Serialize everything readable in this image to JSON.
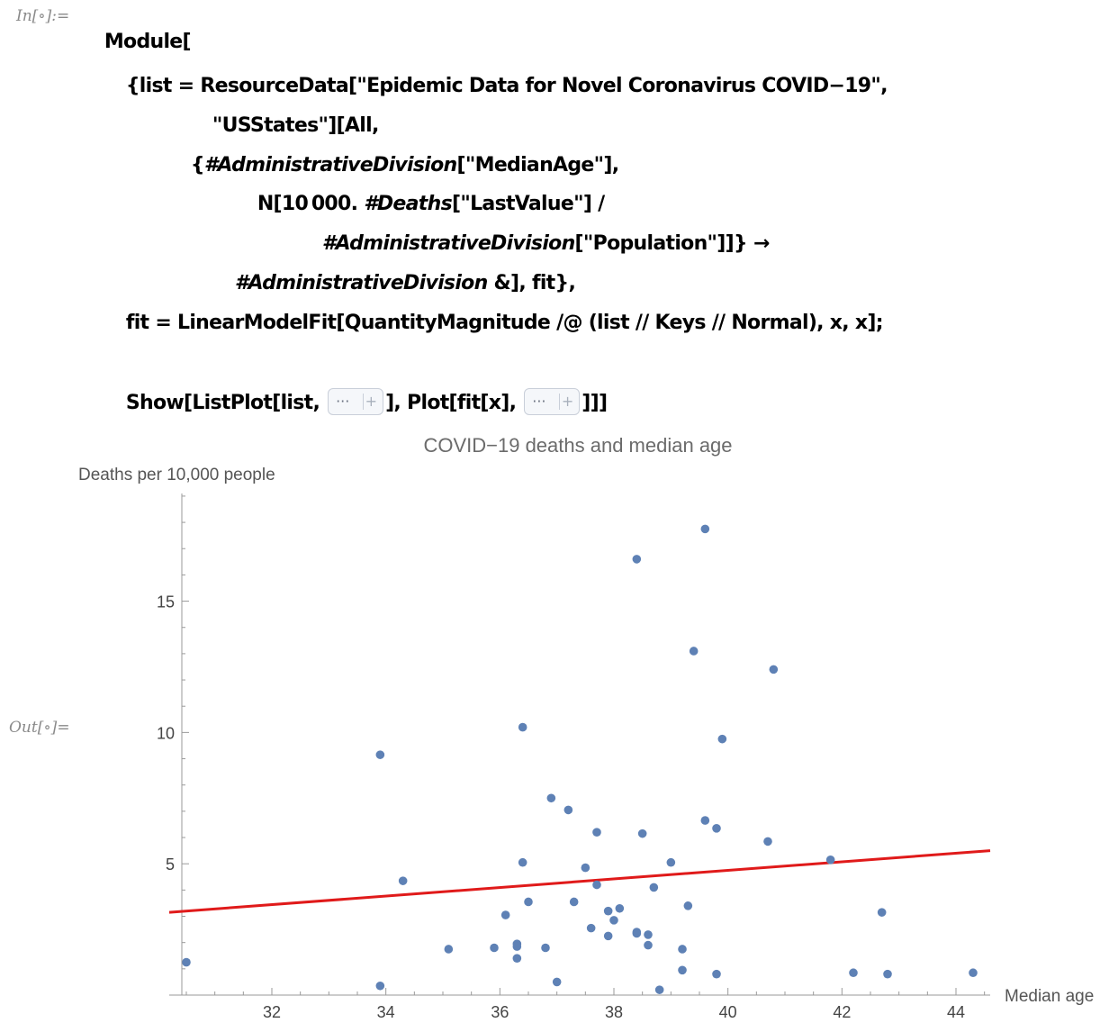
{
  "notebook": {
    "input_label": "In[∘]:=",
    "output_label": "Out[∘]=",
    "code": {
      "line1": "Module[",
      "line2": "{list = ResourceData[\"Epidemic Data for Novel Coronavirus COVID−19\",",
      "line3": "\"USStates\"][All,",
      "line4a": "{",
      "line4b": "#AdministrativeDivision",
      "line4c": "[\"MedianAge\"],",
      "line5a": "N[10 000. ",
      "line5b": "#Deaths",
      "line5c": "[\"LastValue\"] /",
      "line6a": "#AdministrativeDivision",
      "line6b": "[\"Population\"]]} →",
      "line7a": "#AdministrativeDivision",
      "line7b": " &], fit},",
      "line8": "fit = LinearModelFit[QuantityMagnitude /@ (list // Keys // Normal), x, x];",
      "line9a": "Show[ListPlot[list, ",
      "line9b": "], Plot[fit[x], ",
      "line9c": "]]]",
      "elide_dots": "···",
      "elide_plus": "+"
    }
  },
  "chart_data": {
    "type": "scatter",
    "title": "COVID−19 deaths and median age",
    "xlabel": "Median age",
    "ylabel": "Deaths per 10,000 people",
    "xlim": [
      30.2,
      44.6
    ],
    "ylim": [
      0,
      19.1
    ],
    "x_ticks": [
      32,
      34,
      36,
      38,
      40,
      42,
      44
    ],
    "y_ticks": [
      5,
      10,
      15
    ],
    "point_color": "#5e81b5",
    "fit_color": "#e01a1a",
    "fit_line": {
      "x": [
        30.2,
        44.6
      ],
      "y": [
        3.15,
        5.5
      ]
    },
    "points": [
      [
        30.5,
        1.25
      ],
      [
        33.9,
        9.15
      ],
      [
        33.9,
        0.35
      ],
      [
        34.3,
        4.35
      ],
      [
        35.1,
        1.75
      ],
      [
        35.9,
        1.8
      ],
      [
        36.1,
        3.05
      ],
      [
        36.3,
        1.95
      ],
      [
        36.3,
        1.85
      ],
      [
        36.3,
        1.4
      ],
      [
        36.4,
        10.2
      ],
      [
        36.4,
        5.05
      ],
      [
        36.5,
        3.55
      ],
      [
        36.8,
        1.8
      ],
      [
        36.9,
        7.5
      ],
      [
        37.0,
        0.5
      ],
      [
        37.2,
        7.05
      ],
      [
        37.3,
        3.55
      ],
      [
        37.5,
        4.85
      ],
      [
        37.6,
        2.55
      ],
      [
        37.7,
        4.2
      ],
      [
        37.7,
        6.2
      ],
      [
        37.9,
        3.2
      ],
      [
        37.9,
        2.25
      ],
      [
        38.0,
        2.85
      ],
      [
        38.1,
        3.3
      ],
      [
        38.4,
        16.6
      ],
      [
        38.4,
        2.4
      ],
      [
        38.4,
        2.35
      ],
      [
        38.5,
        6.15
      ],
      [
        38.6,
        2.3
      ],
      [
        38.6,
        1.9
      ],
      [
        38.7,
        4.1
      ],
      [
        38.8,
        0.2
      ],
      [
        39.0,
        5.05
      ],
      [
        39.2,
        1.75
      ],
      [
        39.2,
        0.95
      ],
      [
        39.3,
        3.4
      ],
      [
        39.4,
        13.1
      ],
      [
        39.6,
        17.75
      ],
      [
        39.6,
        6.65
      ],
      [
        39.8,
        6.35
      ],
      [
        39.8,
        0.8
      ],
      [
        39.9,
        9.75
      ],
      [
        40.7,
        5.85
      ],
      [
        40.8,
        12.4
      ],
      [
        41.8,
        5.15
      ],
      [
        42.2,
        0.85
      ],
      [
        42.7,
        3.15
      ],
      [
        42.8,
        0.8
      ],
      [
        44.3,
        0.85
      ]
    ]
  }
}
